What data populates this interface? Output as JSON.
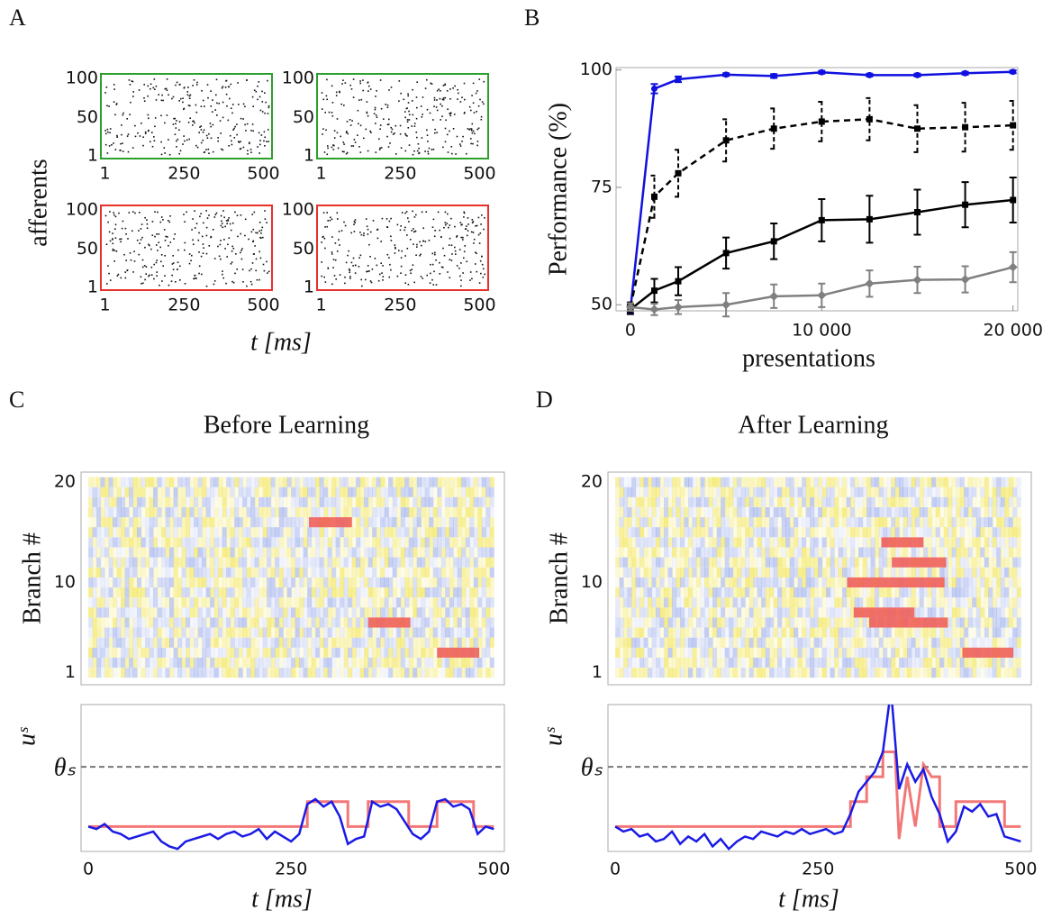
{
  "chart_data": [
    {
      "type": "raster",
      "panel": "A",
      "ylabel": "afferents",
      "xlabel": "t [ms]",
      "xlim": [
        -12,
        527
      ],
      "ylim": [
        -2.5,
        105.8
      ],
      "xticks": [
        1,
        250,
        500
      ],
      "yticks": [
        1,
        50,
        100
      ],
      "plots": [
        {
          "color": "#2ca02c"
        },
        {
          "color": "#2ca02c"
        },
        {
          "color": "#e8302a"
        },
        {
          "color": "#e8302a"
        }
      ]
    },
    {
      "type": "line",
      "panel": "B",
      "ylabel": "Performance (%)",
      "xlabel": "presentations",
      "x": [
        0,
        1250,
        2500,
        5000,
        7500,
        10000,
        12500,
        15000,
        17500,
        20000
      ],
      "xlim": [
        -750,
        20250
      ],
      "ylim": [
        48.7,
        100.5
      ],
      "xticks": [
        0,
        {
          "value": 10000,
          "label": "10 000"
        },
        {
          "value": 20000,
          "label": "20 000"
        }
      ],
      "yticks": [
        50,
        75,
        100
      ],
      "series": [
        {
          "color": "#1010e0",
          "marker": "circle",
          "dash": false,
          "values": [
            49,
            96,
            98,
            99,
            98.7,
            99.5,
            98.9,
            98.9,
            99.3,
            99.6
          ],
          "errors": [
            0.8,
            1,
            0.6,
            0.3,
            0.4,
            0.3,
            0.3,
            0.3,
            0.3,
            0.3
          ]
        },
        {
          "color": "#000000",
          "marker": "square",
          "dash": true,
          "values": [
            49.5,
            73,
            78,
            85,
            87.5,
            89,
            89.5,
            87.5,
            87.8,
            88.2
          ],
          "errors": [
            1,
            4.5,
            5,
            4.5,
            4.3,
            4.2,
            4.5,
            5,
            5.2,
            5.2
          ]
        },
        {
          "color": "#000000",
          "marker": "square",
          "dash": false,
          "values": [
            49,
            53,
            55,
            61,
            63.5,
            68,
            68.2,
            69.7,
            71.3,
            72.3
          ],
          "errors": [
            1,
            2.5,
            3,
            3.3,
            3.8,
            4.5,
            5,
            4.8,
            4.8,
            4.8
          ]
        },
        {
          "color": "#808080",
          "marker": "diamond",
          "dash": false,
          "values": [
            49.5,
            49,
            49.5,
            50,
            51.8,
            52,
            54.5,
            55.3,
            55.4,
            58
          ],
          "errors": [
            0.8,
            1.2,
            1.5,
            2.5,
            2.5,
            2.5,
            2.8,
            2.8,
            2.8,
            3.2
          ]
        }
      ]
    },
    {
      "type": "heatmap",
      "panel": "C",
      "title": "Before Learning",
      "ylabel": "Branch #",
      "xlim": [
        -9,
        513
      ],
      "ylim": [
        -0.2,
        21
      ],
      "yticks": [
        1,
        10,
        20
      ],
      "spans": [
        {
          "branch": 16,
          "start": 272,
          "end": 325
        },
        {
          "branch": 6,
          "start": 345,
          "end": 397
        },
        {
          "branch": 3,
          "start": 430,
          "end": 482
        }
      ]
    },
    {
      "type": "trace",
      "ylabel": "uˢ",
      "xlabel": "t [ms]",
      "xlim": [
        -9,
        513
      ],
      "ylim": [
        -1,
        4.9
      ],
      "xticks": [
        0,
        250,
        500
      ],
      "yticks": [
        {
          "value": 2.4,
          "label": "θₛ"
        }
      ],
      "series": [
        {
          "color": "#1a1ae6",
          "x": [
            0,
            10,
            20,
            30,
            40,
            50,
            60,
            70,
            80,
            90,
            100,
            110,
            120,
            130,
            140,
            150,
            160,
            170,
            180,
            190,
            200,
            210,
            220,
            230,
            240,
            250,
            260,
            270,
            280,
            290,
            300,
            310,
            320,
            330,
            340,
            350,
            360,
            370,
            380,
            390,
            400,
            410,
            420,
            430,
            440,
            450,
            460,
            470,
            480,
            490,
            500
          ],
          "values": [
            0,
            -0.1,
            0.1,
            -0.2,
            -0.3,
            -0.5,
            -0.4,
            -0.3,
            -0.2,
            -0.6,
            -0.8,
            -0.9,
            -0.6,
            -0.5,
            -0.4,
            -0.3,
            -0.5,
            -0.3,
            -0.2,
            -0.4,
            -0.3,
            -0.1,
            -0.5,
            -0.2,
            -0.4,
            -0.6,
            -0.3,
            0.9,
            1.1,
            0.8,
            1.0,
            0.4,
            -0.7,
            -0.5,
            -0.4,
            1.0,
            0.8,
            0.9,
            0.7,
            0.2,
            -0.3,
            -0.5,
            -0.2,
            1.0,
            1.1,
            0.8,
            0.9,
            0.7,
            -0.3,
            0.0,
            -0.1
          ]
        },
        {
          "color": "#f06060",
          "x": [
            0,
            270,
            270,
            320,
            320,
            345,
            345,
            395,
            395,
            430,
            430,
            475,
            475,
            500
          ],
          "values": [
            0,
            0,
            1,
            1,
            0,
            0,
            1,
            1,
            0,
            0,
            1,
            1,
            0,
            0
          ]
        }
      ]
    },
    {
      "type": "heatmap",
      "panel": "D",
      "title": "After Learning",
      "ylabel": "Branch #",
      "xlim": [
        -9,
        513
      ],
      "ylim": [
        -0.2,
        21
      ],
      "yticks": [
        1,
        10,
        20
      ],
      "spans": [
        {
          "branch": 14,
          "start": 328,
          "end": 380
        },
        {
          "branch": 12,
          "start": 341,
          "end": 408
        },
        {
          "branch": 10,
          "start": 286,
          "end": 406
        },
        {
          "branch": 7,
          "start": 294,
          "end": 369
        },
        {
          "branch": 6,
          "start": 313,
          "end": 410
        },
        {
          "branch": 3,
          "start": 428,
          "end": 491
        }
      ]
    },
    {
      "type": "trace",
      "ylabel": "uˢ",
      "xlabel": "t [ms]",
      "xlim": [
        -9,
        513
      ],
      "ylim": [
        -1,
        4.9
      ],
      "xticks": [
        0,
        250,
        500
      ],
      "yticks": [
        {
          "value": 2.4,
          "label": "θₛ"
        }
      ],
      "series": [
        {
          "color": "#1a1ae6",
          "x": [
            0,
            10,
            20,
            30,
            40,
            50,
            60,
            70,
            80,
            90,
            100,
            110,
            120,
            130,
            140,
            150,
            160,
            170,
            180,
            190,
            200,
            210,
            220,
            230,
            240,
            250,
            260,
            270,
            280,
            290,
            300,
            310,
            320,
            330,
            340,
            350,
            360,
            370,
            380,
            390,
            400,
            410,
            420,
            430,
            440,
            450,
            460,
            470,
            480,
            490,
            500
          ],
          "values": [
            0,
            -0.2,
            -0.1,
            -0.4,
            -0.3,
            -0.6,
            -0.5,
            -0.2,
            -0.7,
            -0.4,
            -0.6,
            -0.3,
            -0.8,
            -0.5,
            -0.9,
            -0.6,
            -0.4,
            -0.5,
            -0.2,
            -0.3,
            -0.4,
            -0.2,
            -0.3,
            -0.1,
            -0.3,
            -0.2,
            -0.1,
            -0.3,
            -0.2,
            0.5,
            1.4,
            1.8,
            2.2,
            3.0,
            5.5,
            1.5,
            2.5,
            1.8,
            2.3,
            1.2,
            0.5,
            -0.6,
            -0.2,
            0.8,
            0.6,
            0.9,
            0.4,
            0.5,
            -0.4,
            -0.5,
            -0.6
          ]
        },
        {
          "color": "#f06060",
          "x": [
            0,
            290,
            290,
            310,
            310,
            330,
            330,
            345,
            350,
            360,
            370,
            380,
            390,
            400,
            400,
            420,
            420,
            480,
            480,
            500
          ],
          "values": [
            0,
            0,
            1,
            1,
            2,
            2,
            3,
            3,
            -0.5,
            2,
            0,
            2.5,
            2,
            2,
            0,
            0,
            1,
            1,
            0,
            0
          ]
        }
      ]
    }
  ]
}
